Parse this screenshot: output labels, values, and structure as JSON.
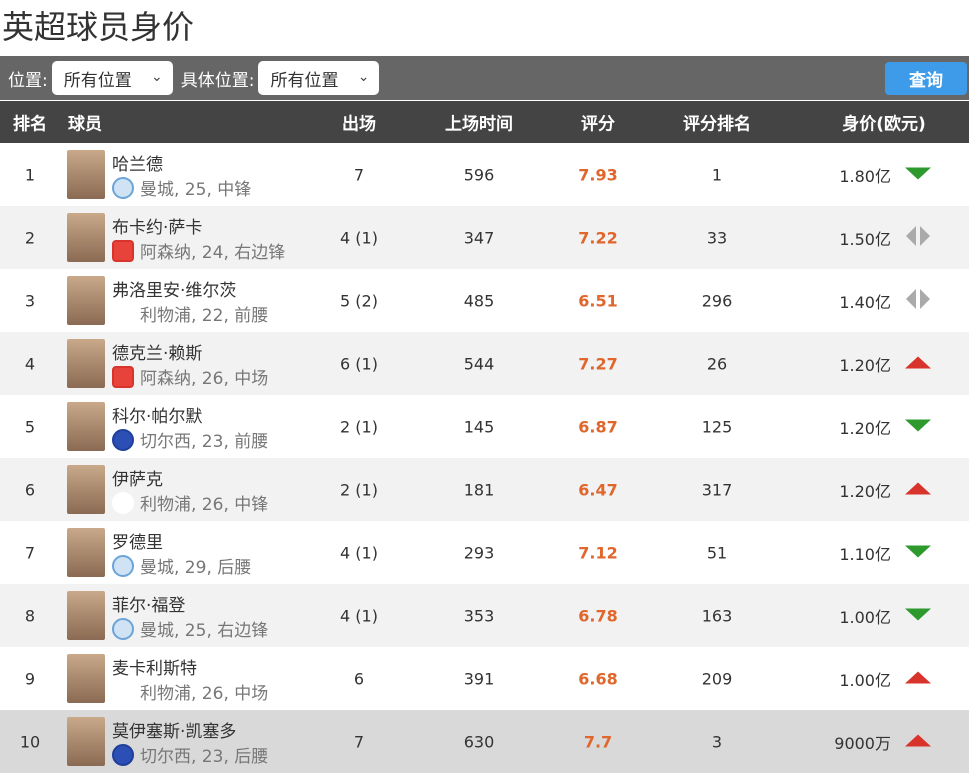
{
  "title": "英超球员身价",
  "toolbar": {
    "position_label": "位置:",
    "position_value": "所有位置",
    "detail_label": "具体位置:",
    "detail_value": "所有位置",
    "query_label": "查询"
  },
  "columns": [
    "排名",
    "球员",
    "出场",
    "上场时间",
    "评分",
    "评分排名",
    "身价(欧元)"
  ],
  "colors": {
    "rating": "#e0662b",
    "header": "#444444",
    "toolbar": "#666666",
    "button": "#3d9be9",
    "down": "#2e9a2e",
    "up": "#d9342b",
    "flat": "#aaaaaa"
  },
  "rows": [
    {
      "rank": "1",
      "name": "哈兰德",
      "info": "曼城, 25, 中锋",
      "club": "mancity",
      "apps": "7",
      "minutes": "596",
      "rating": "7.93",
      "rating_rank": "1",
      "value": "1.80亿",
      "trend": "down"
    },
    {
      "rank": "2",
      "name": "布卡约·萨卡",
      "info": "阿森纳, 24, 右边锋",
      "club": "arsenal",
      "apps": "4 (1)",
      "minutes": "347",
      "rating": "7.22",
      "rating_rank": "33",
      "value": "1.50亿",
      "trend": "flat"
    },
    {
      "rank": "3",
      "name": "弗洛里安·维尔茨",
      "info": "利物浦, 22, 前腰",
      "club": "liverpool",
      "apps": "5 (2)",
      "minutes": "485",
      "rating": "6.51",
      "rating_rank": "296",
      "value": "1.40亿",
      "trend": "flat"
    },
    {
      "rank": "4",
      "name": "德克兰·赖斯",
      "info": "阿森纳, 26, 中场",
      "club": "arsenal",
      "apps": "6 (1)",
      "minutes": "544",
      "rating": "7.27",
      "rating_rank": "26",
      "value": "1.20亿",
      "trend": "up"
    },
    {
      "rank": "5",
      "name": "科尔·帕尔默",
      "info": "切尔西, 23, 前腰",
      "club": "chelsea",
      "apps": "2 (1)",
      "minutes": "145",
      "rating": "6.87",
      "rating_rank": "125",
      "value": "1.20亿",
      "trend": "down"
    },
    {
      "rank": "6",
      "name": "伊萨克",
      "info": "利物浦, 26, 中锋",
      "club": "liverpool",
      "apps": "2 (1)",
      "minutes": "181",
      "rating": "6.47",
      "rating_rank": "317",
      "value": "1.20亿",
      "trend": "up"
    },
    {
      "rank": "7",
      "name": "罗德里",
      "info": "曼城, 29, 后腰",
      "club": "mancity",
      "apps": "4 (1)",
      "minutes": "293",
      "rating": "7.12",
      "rating_rank": "51",
      "value": "1.10亿",
      "trend": "down"
    },
    {
      "rank": "8",
      "name": "菲尔·福登",
      "info": "曼城, 25, 右边锋",
      "club": "mancity",
      "apps": "4 (1)",
      "minutes": "353",
      "rating": "6.78",
      "rating_rank": "163",
      "value": "1.00亿",
      "trend": "down"
    },
    {
      "rank": "9",
      "name": "麦卡利斯特",
      "info": "利物浦, 26, 中场",
      "club": "liverpool",
      "apps": "6",
      "minutes": "391",
      "rating": "6.68",
      "rating_rank": "209",
      "value": "1.00亿",
      "trend": "up"
    },
    {
      "rank": "10",
      "name": "莫伊塞斯·凯塞多",
      "info": "切尔西, 23, 后腰",
      "club": "chelsea",
      "apps": "7",
      "minutes": "630",
      "rating": "7.7",
      "rating_rank": "3",
      "value": "9000万",
      "trend": "up"
    }
  ]
}
